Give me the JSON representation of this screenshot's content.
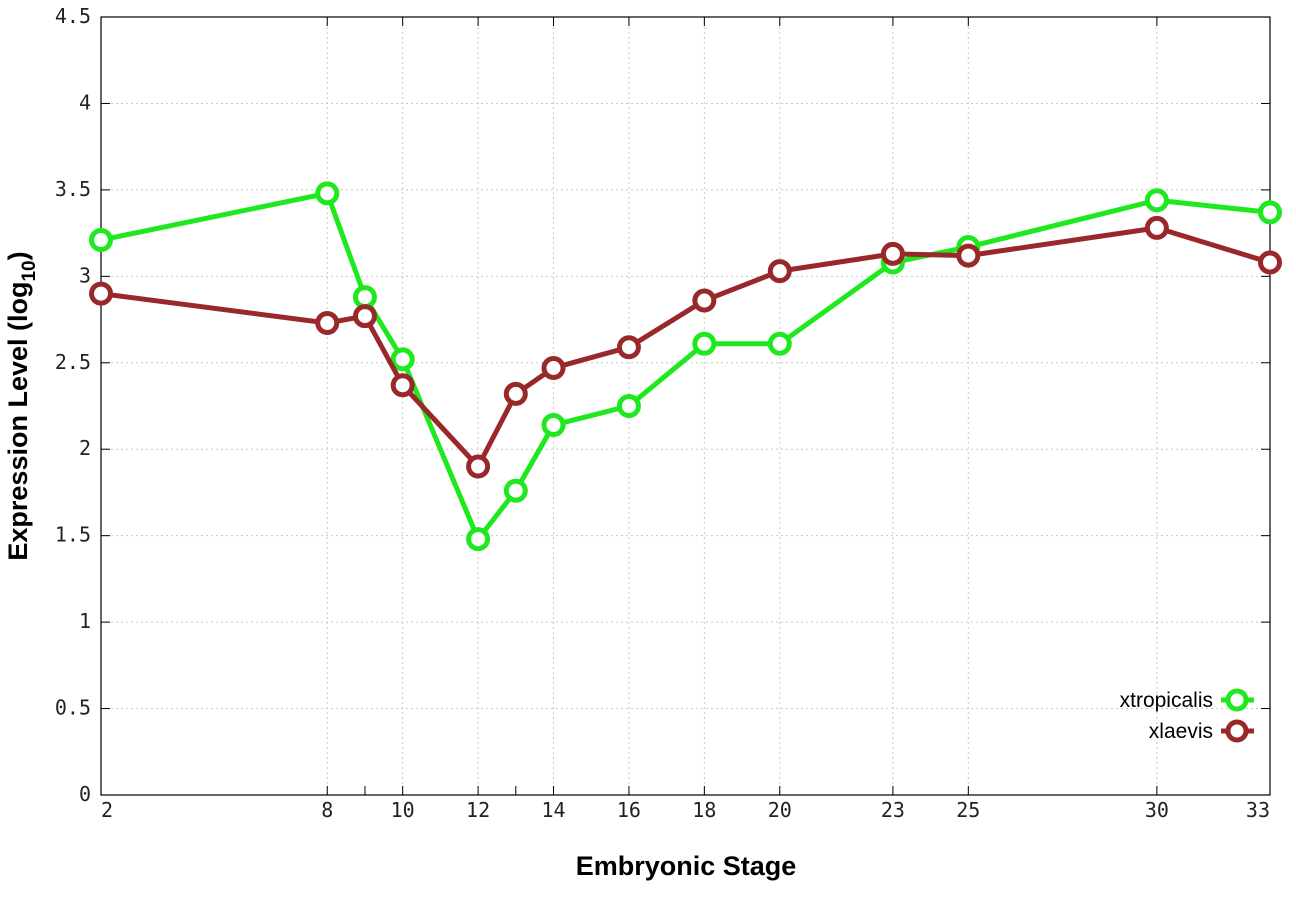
{
  "chart_data": {
    "type": "line",
    "xlabel": "Embryonic Stage",
    "ylabel_main": "Expression Level (log",
    "ylabel_sub": "10",
    "ylabel_end": ")",
    "xlim": [
      2,
      33
    ],
    "ylim": [
      0,
      4.5
    ],
    "x": [
      2,
      8,
      9,
      10,
      12,
      13,
      14,
      16,
      18,
      20,
      23,
      25,
      30,
      33
    ],
    "x_tick_labels": [
      "2",
      "8",
      "10",
      "12",
      "14",
      "16",
      "18",
      "20",
      "23",
      "25",
      "30",
      "33"
    ],
    "x_tick_values": [
      2,
      8,
      10,
      12,
      14,
      16,
      18,
      20,
      23,
      25,
      30,
      33
    ],
    "y_ticks": [
      0,
      0.5,
      1,
      1.5,
      2,
      2.5,
      3,
      3.5,
      4,
      4.5
    ],
    "y_tick_labels": [
      "0",
      "0.5",
      "1",
      "1.5",
      "2",
      "2.5",
      "3",
      "3.5",
      "4",
      "4.5"
    ],
    "grid": true,
    "legend_position": "bottom-right",
    "series": [
      {
        "name": "xtropicalis",
        "color": "#1ee81e",
        "values": [
          3.21,
          3.48,
          2.88,
          2.52,
          1.48,
          1.76,
          2.14,
          2.25,
          2.61,
          2.61,
          3.08,
          3.17,
          3.44,
          3.37
        ]
      },
      {
        "name": "xlaevis",
        "color": "#99282a",
        "values": [
          2.9,
          2.73,
          2.77,
          2.37,
          1.9,
          2.32,
          2.47,
          2.59,
          2.86,
          3.03,
          3.13,
          3.12,
          3.28,
          3.08
        ]
      }
    ]
  }
}
